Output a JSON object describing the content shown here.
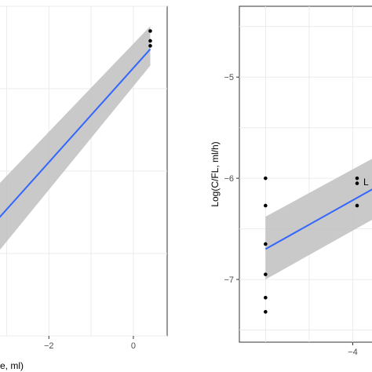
{
  "chart_data": [
    {
      "type": "scatter",
      "xlabel": "me, ml)",
      "ylabel": "",
      "xlim": [
        -3.9,
        0.8
      ],
      "ylim": [
        -1.0,
        1.0
      ],
      "x_ticks": [
        -2,
        0
      ],
      "y_ticks": [],
      "grid": true,
      "colors": {
        "line": "#3366ff",
        "band": "#bfbfbf",
        "points": "#000000",
        "gridline": "#ebebeb"
      },
      "points": [
        {
          "x": 0.4,
          "y": 0.85
        },
        {
          "x": 0.4,
          "y": 0.79
        },
        {
          "x": 0.4,
          "y": 0.76
        }
      ],
      "fit": {
        "x": [
          -3.9,
          0.4
        ],
        "y": [
          -0.49,
          0.74
        ],
        "lower": [
          -0.71,
          0.64
        ],
        "upper": [
          -0.27,
          0.88
        ]
      }
    },
    {
      "type": "scatter",
      "xlabel": "",
      "ylabel": "Log(C/FL, ml/h)",
      "xlim": [
        -5.3,
        -3.5
      ],
      "ylim": [
        -7.62,
        -4.3
      ],
      "x_ticks": [
        -4
      ],
      "y_ticks": [
        -7,
        -6,
        -5
      ],
      "grid": true,
      "partial_label": "L",
      "colors": {
        "line": "#3366ff",
        "band": "#bfbfbf",
        "points": "#000000",
        "gridline": "#ebebeb"
      },
      "points": [
        {
          "x": -5.0,
          "y": -6.0
        },
        {
          "x": -5.0,
          "y": -6.27
        },
        {
          "x": -5.0,
          "y": -6.65
        },
        {
          "x": -5.0,
          "y": -6.95
        },
        {
          "x": -5.0,
          "y": -7.18
        },
        {
          "x": -5.0,
          "y": -7.32
        },
        {
          "x": -3.95,
          "y": -6.0
        },
        {
          "x": -3.95,
          "y": -6.05
        },
        {
          "x": -3.95,
          "y": -6.27
        }
      ],
      "fit": {
        "x": [
          -5.0,
          -3.55
        ],
        "y": [
          -6.7,
          -6.0
        ],
        "lower": [
          -7.0,
          -6.3
        ],
        "upper": [
          -6.38,
          -5.7
        ]
      }
    }
  ]
}
